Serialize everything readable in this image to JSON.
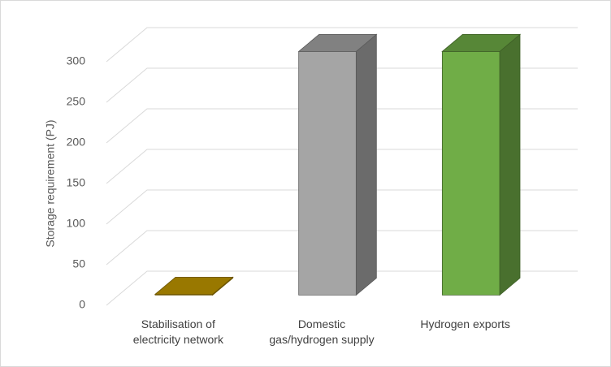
{
  "chart_data": {
    "type": "bar3d",
    "y_label": "Storage requirement (PJ)",
    "categories": [
      "Stabilisation of electricity network",
      "Domestic gas/hydrogen supply",
      "Hydrogen exports"
    ],
    "values": [
      1,
      300,
      300
    ],
    "colors": [
      "#c49a00",
      "#a5a5a5",
      "#70ad47"
    ],
    "ylim": [
      0,
      300
    ],
    "yticks": [
      0,
      50,
      100,
      150,
      200,
      250,
      300
    ],
    "grid": true
  }
}
